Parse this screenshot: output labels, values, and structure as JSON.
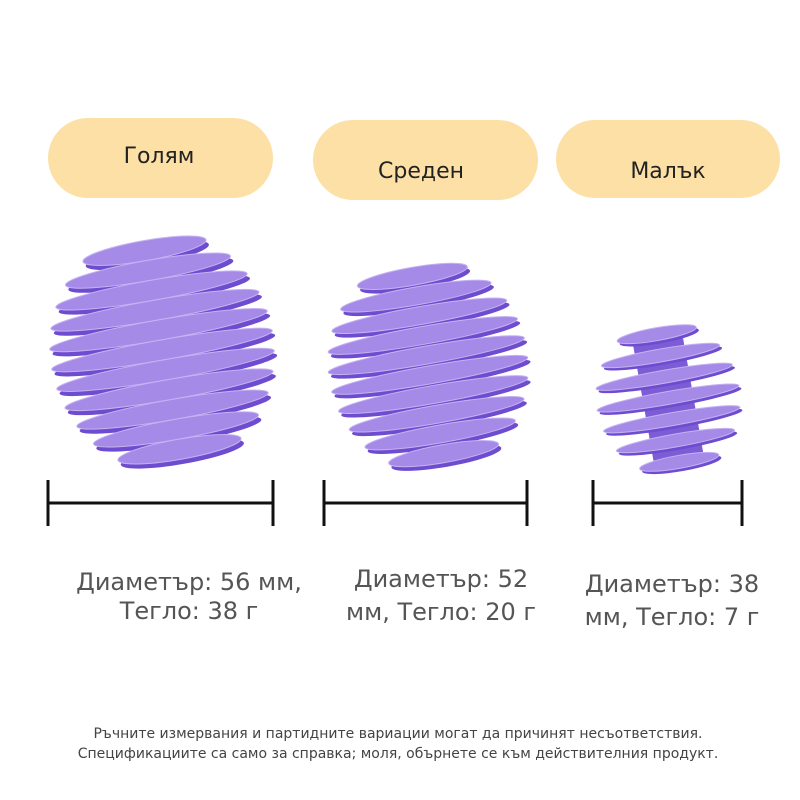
{
  "products": [
    {
      "label": "Голям",
      "lines": [
        "Диаметър: 56 мм,",
        "Тегло: 38 г"
      ]
    },
    {
      "label": "Среден",
      "lines": [
        "Диаметър: 52",
        "мм, Тегло: 20 г"
      ]
    },
    {
      "label": "Малък",
      "lines": [
        "Диаметър: 38",
        "мм, Тегло: 7 г"
      ]
    }
  ],
  "footnote": [
    "Ръчните измервания и партидните вариации могат да причинят несъответствия.",
    "Спецификациите са само за справка; моля, обърнете се към действителния продукт."
  ]
}
